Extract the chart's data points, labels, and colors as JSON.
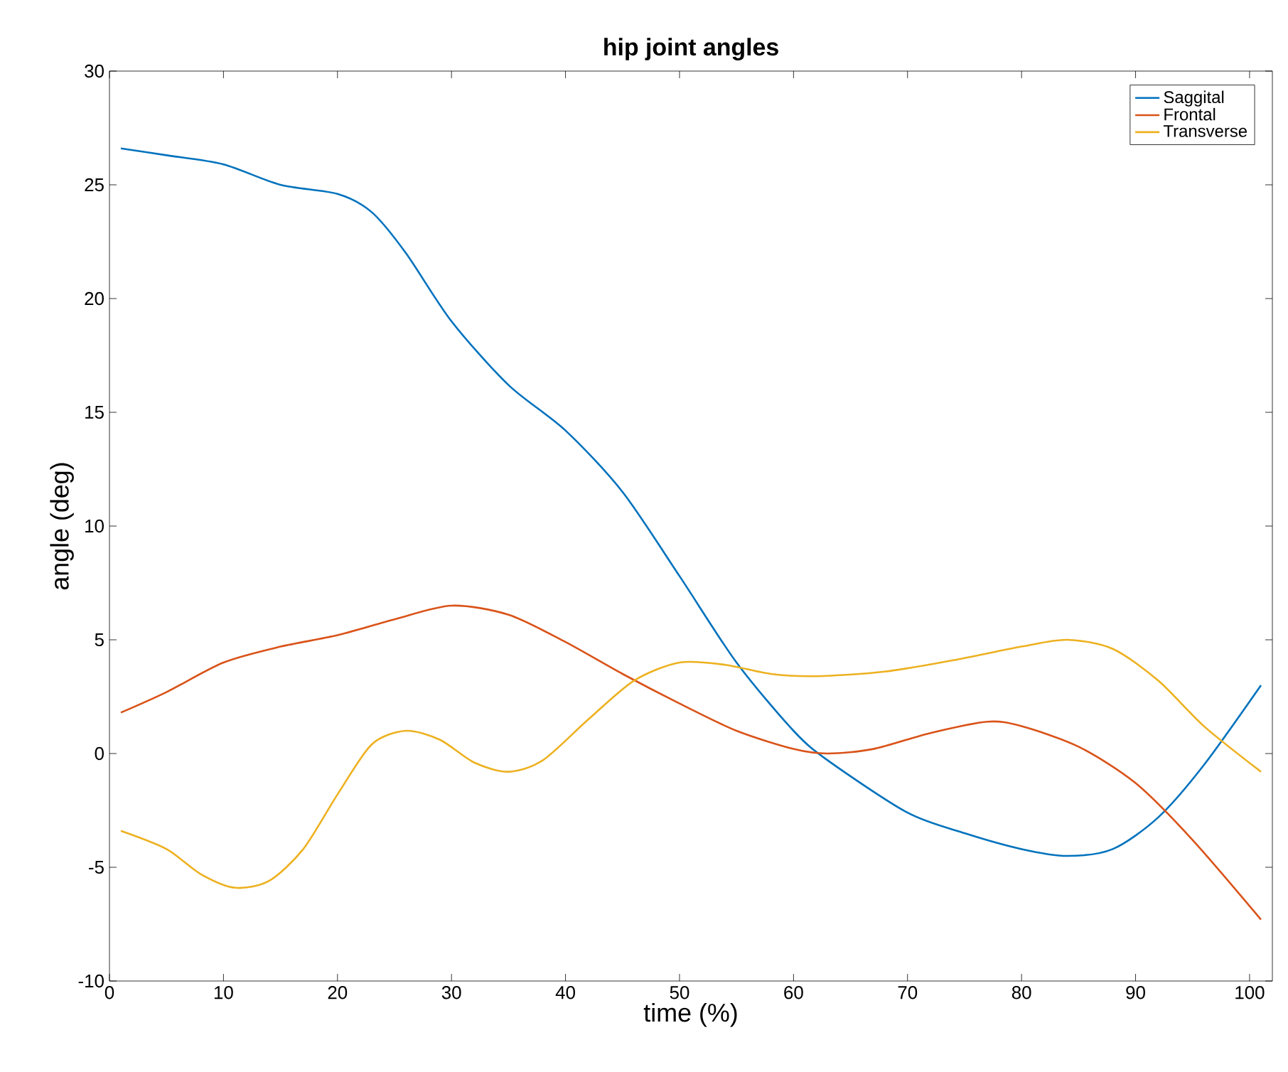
{
  "chart_data": {
    "type": "line",
    "title": "hip joint angles",
    "xlabel": "time (%)",
    "ylabel": "angle (deg)",
    "xlim": [
      0,
      102
    ],
    "ylim": [
      -10,
      30
    ],
    "xticks": [
      0,
      10,
      20,
      30,
      40,
      50,
      60,
      70,
      80,
      90,
      100
    ],
    "yticks": [
      -10,
      -5,
      0,
      5,
      10,
      15,
      20,
      25,
      30
    ],
    "grid": false,
    "legend": "top right",
    "marker": "none",
    "line_style": "solid",
    "series": [
      {
        "name": "Saggital",
        "color": "#0072bd",
        "x": [
          1,
          5,
          10,
          15,
          20,
          23,
          26,
          30,
          35,
          40,
          45,
          50,
          55,
          60,
          63,
          70,
          75,
          80,
          84,
          88,
          92,
          96,
          101
        ],
        "values": [
          26.6,
          26.3,
          25.9,
          25.0,
          24.6,
          23.8,
          22,
          19,
          16.2,
          14.2,
          11.5,
          7.8,
          4.0,
          1.0,
          -0.3,
          -2.6,
          -3.5,
          -4.2,
          -4.5,
          -4.2,
          -2.8,
          -0.5,
          3.0
        ]
      },
      {
        "name": "Frontal",
        "color": "#d95319",
        "x": [
          1,
          5,
          10,
          15,
          20,
          25,
          30,
          35,
          40,
          45,
          50,
          55,
          60,
          63,
          67,
          72,
          77,
          80,
          85,
          90,
          95,
          101
        ],
        "values": [
          1.8,
          2.7,
          4.0,
          4.7,
          5.2,
          5.9,
          6.5,
          6.1,
          4.9,
          3.5,
          2.2,
          1.0,
          0.2,
          0,
          0.2,
          0.9,
          1.4,
          1.2,
          0.3,
          -1.3,
          -3.8,
          -7.3
        ]
      },
      {
        "name": "Transverse",
        "color": "#edb120",
        "x": [
          1,
          5,
          8,
          11,
          14,
          17,
          20,
          23,
          26,
          29,
          32,
          35,
          38,
          42,
          46,
          50,
          54,
          58,
          62,
          68,
          74,
          80,
          84,
          88,
          92,
          96,
          101
        ],
        "values": [
          -3.4,
          -4.2,
          -5.3,
          -5.9,
          -5.6,
          -4.2,
          -1.8,
          0.4,
          1.0,
          0.6,
          -0.4,
          -0.8,
          -0.3,
          1.5,
          3.2,
          4.0,
          3.9,
          3.5,
          3.4,
          3.6,
          4.1,
          4.7,
          5.0,
          4.6,
          3.2,
          1.2,
          -0.8
        ]
      }
    ]
  }
}
